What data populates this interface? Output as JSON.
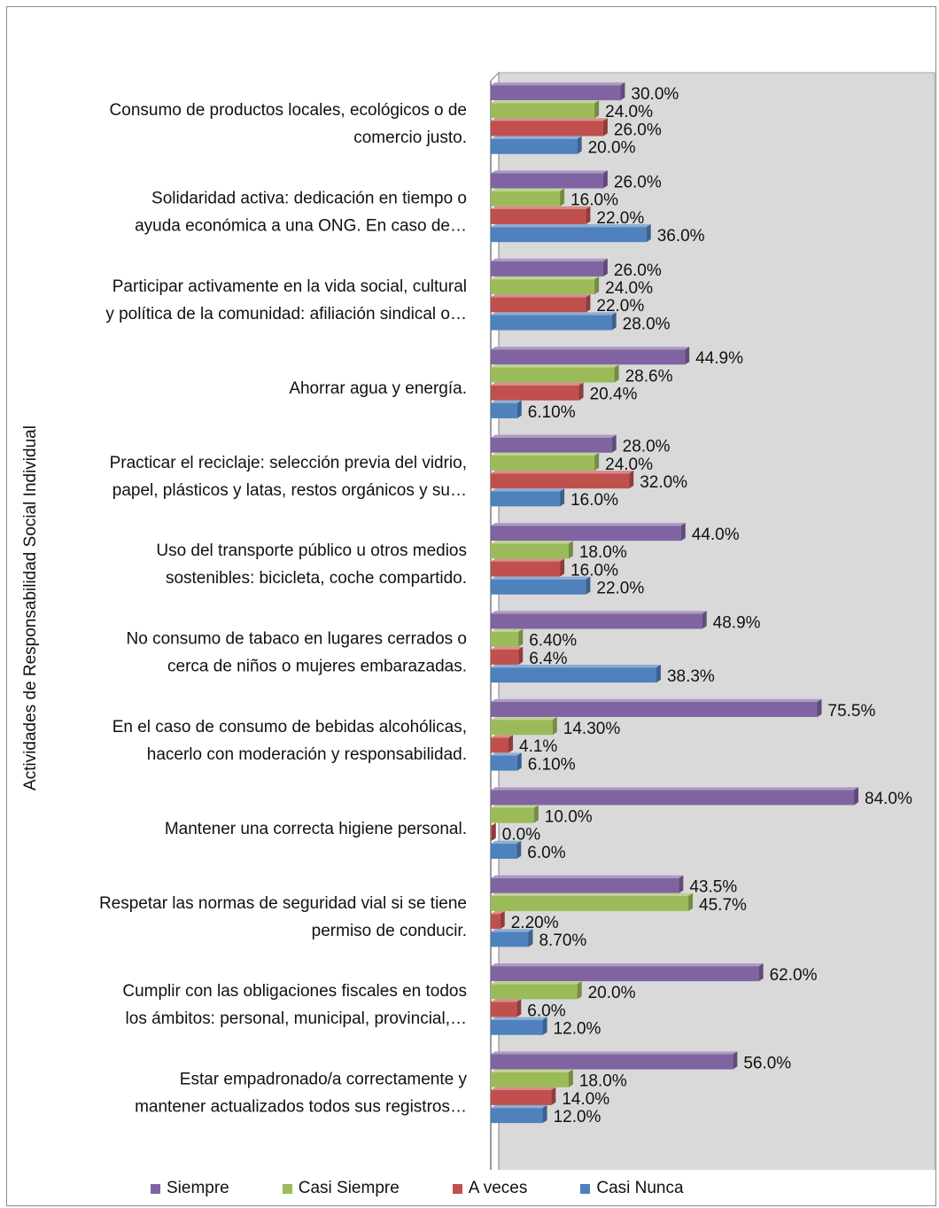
{
  "chart_data": {
    "type": "bar",
    "orientation": "horizontal",
    "ylabel": "Actividades de Responsabilidad Social Individual",
    "xlim": [
      0,
      100
    ],
    "grid": false,
    "legend_position": "bottom",
    "categories": [
      [
        "Consumo de productos locales, ecológicos o de",
        "comercio justo."
      ],
      [
        "Solidaridad activa: dedicación en tiempo o",
        "ayuda económica a una ONG. En caso de…"
      ],
      [
        "Participar activamente en la vida social, cultural",
        "y política de la comunidad: afiliación sindical o…"
      ],
      [
        "Ahorrar agua y energía."
      ],
      [
        "Practicar el reciclaje: selección previa del vidrio,",
        "papel, plásticos y latas, restos orgánicos y su…"
      ],
      [
        "Uso del transporte público u otros medios",
        "sostenibles: bicicleta, coche compartido."
      ],
      [
        "No consumo de tabaco en lugares cerrados o",
        "cerca de niños o mujeres embarazadas."
      ],
      [
        "En el caso de consumo de bebidas alcohólicas,",
        "hacerlo con moderación y responsabilidad."
      ],
      [
        "Mantener una correcta higiene personal."
      ],
      [
        "Respetar las normas de seguridad vial si se tiene",
        "permiso de conducir."
      ],
      [
        "Cumplir con las obligaciones fiscales en todos",
        "los ámbitos: personal, municipal, provincial,…"
      ],
      [
        "Estar empadronado/a correctamente y",
        "mantener actualizados todos sus registros…"
      ]
    ],
    "series": [
      {
        "name": "Siempre",
        "color": "#8064a2",
        "values": [
          30.0,
          26.0,
          26.0,
          44.9,
          28.0,
          44.0,
          48.9,
          75.5,
          84.0,
          43.5,
          62.0,
          56.0
        ],
        "labels": [
          "30.0%",
          "26.0%",
          "26.0%",
          "44.9%",
          "28.0%",
          "44.0%",
          "48.9%",
          "75.5%",
          "84.0%",
          "43.5%",
          "62.0%",
          "56.0%"
        ]
      },
      {
        "name": "Casi Siempre",
        "color": "#9bbb59",
        "values": [
          24.0,
          16.0,
          24.0,
          28.6,
          24.0,
          18.0,
          6.4,
          14.3,
          10.0,
          45.7,
          20.0,
          18.0
        ],
        "labels": [
          "24.0%",
          "16.0%",
          "24.0%",
          "28.6%",
          "24.0%",
          "18.0%",
          "6.40%",
          "14.30%",
          "10.0%",
          "45.7%",
          "20.0%",
          "18.0%"
        ]
      },
      {
        "name": "A veces",
        "color": "#c0504d",
        "values": [
          26.0,
          22.0,
          22.0,
          20.4,
          32.0,
          16.0,
          6.4,
          4.1,
          0.0,
          2.2,
          6.0,
          14.0
        ],
        "labels": [
          "26.0%",
          "22.0%",
          "22.0%",
          "20.4%",
          "32.0%",
          "16.0%",
          "6.4%",
          "4.1%",
          "0.0%",
          "2.20%",
          "6.0%",
          "14.0%"
        ]
      },
      {
        "name": "Casi Nunca",
        "color": "#4f81bd",
        "values": [
          20.0,
          36.0,
          28.0,
          6.1,
          16.0,
          22.0,
          38.3,
          6.1,
          6.0,
          8.7,
          12.0,
          12.0
        ],
        "labels": [
          "20.0%",
          "36.0%",
          "28.0%",
          "6.10%",
          "16.0%",
          "22.0%",
          "38.3%",
          "6.10%",
          "6.0%",
          "8.70%",
          "12.0%",
          "12.0%"
        ]
      }
    ]
  }
}
